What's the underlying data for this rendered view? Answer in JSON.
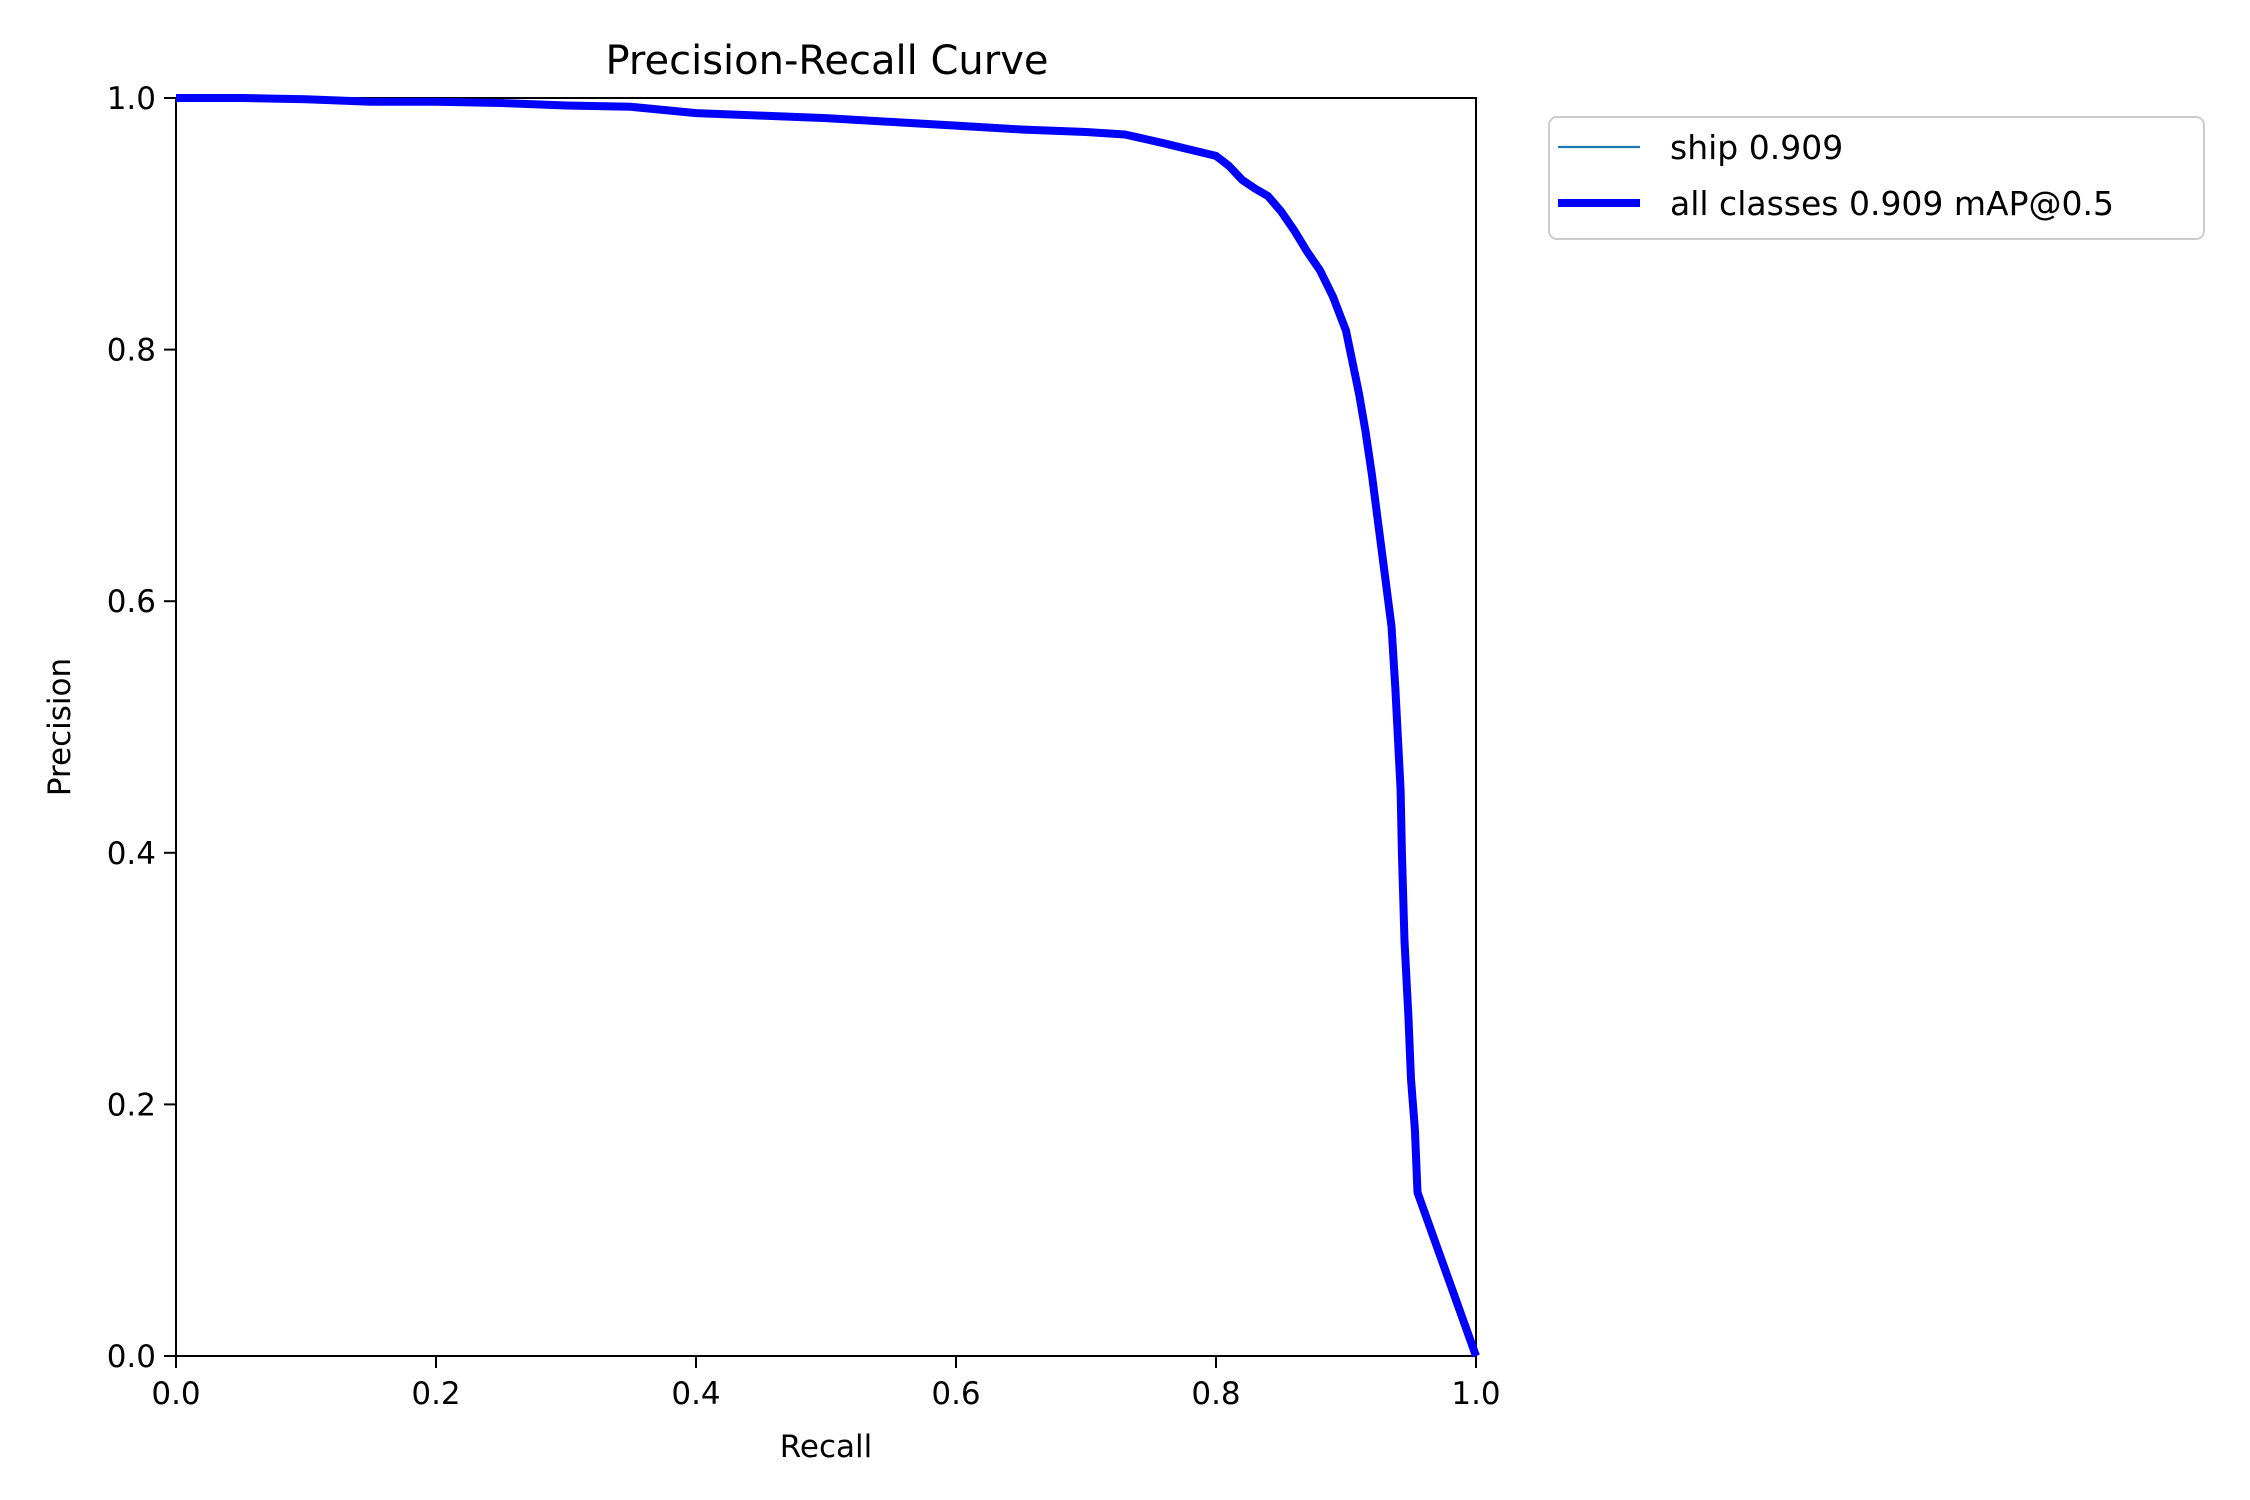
{
  "chart_data": {
    "type": "line",
    "title": "Precision-Recall Curve",
    "xlabel": "Recall",
    "ylabel": "Precision",
    "xlim": [
      0,
      1
    ],
    "ylim": [
      0,
      1
    ],
    "xticks": [
      "0.0",
      "0.2",
      "0.4",
      "0.6",
      "0.8",
      "1.0"
    ],
    "yticks": [
      "0.0",
      "0.2",
      "0.4",
      "0.6",
      "0.8",
      "1.0"
    ],
    "grid": false,
    "legend_position": "outside-top-right",
    "series": [
      {
        "name": "ship 0.909",
        "color": "#1f77b4",
        "line_width": "thin",
        "x": [
          0.0,
          0.05,
          0.1,
          0.15,
          0.2,
          0.25,
          0.3,
          0.35,
          0.4,
          0.45,
          0.5,
          0.55,
          0.6,
          0.65,
          0.7,
          0.73,
          0.76,
          0.78,
          0.8,
          0.81,
          0.82,
          0.83,
          0.84,
          0.85,
          0.86,
          0.87,
          0.88,
          0.89,
          0.9,
          0.905,
          0.91,
          0.915,
          0.92,
          0.925,
          0.93,
          0.935,
          0.938,
          0.94,
          0.942,
          0.943,
          0.945,
          0.948,
          0.95,
          0.953,
          0.955,
          1.0
        ],
        "y": [
          1.0,
          1.0,
          0.999,
          0.997,
          0.997,
          0.996,
          0.994,
          0.993,
          0.988,
          0.986,
          0.984,
          0.981,
          0.978,
          0.975,
          0.973,
          0.971,
          0.964,
          0.959,
          0.954,
          0.946,
          0.935,
          0.928,
          0.922,
          0.91,
          0.895,
          0.878,
          0.863,
          0.842,
          0.815,
          0.79,
          0.765,
          0.735,
          0.7,
          0.66,
          0.62,
          0.58,
          0.53,
          0.49,
          0.45,
          0.4,
          0.33,
          0.27,
          0.22,
          0.18,
          0.13,
          0.0
        ]
      },
      {
        "name": "all classes 0.909 mAP@0.5",
        "color": "#0000ff",
        "line_width": "thick",
        "x": [
          0.0,
          0.05,
          0.1,
          0.15,
          0.2,
          0.25,
          0.3,
          0.35,
          0.4,
          0.45,
          0.5,
          0.55,
          0.6,
          0.65,
          0.7,
          0.73,
          0.76,
          0.78,
          0.8,
          0.81,
          0.82,
          0.83,
          0.84,
          0.85,
          0.86,
          0.87,
          0.88,
          0.89,
          0.9,
          0.905,
          0.91,
          0.915,
          0.92,
          0.925,
          0.93,
          0.935,
          0.938,
          0.94,
          0.942,
          0.943,
          0.945,
          0.948,
          0.95,
          0.953,
          0.955,
          1.0
        ],
        "y": [
          1.0,
          1.0,
          0.999,
          0.997,
          0.997,
          0.996,
          0.994,
          0.993,
          0.988,
          0.986,
          0.984,
          0.981,
          0.978,
          0.975,
          0.973,
          0.971,
          0.964,
          0.959,
          0.954,
          0.946,
          0.935,
          0.928,
          0.922,
          0.91,
          0.895,
          0.878,
          0.863,
          0.842,
          0.815,
          0.79,
          0.765,
          0.735,
          0.7,
          0.66,
          0.62,
          0.58,
          0.53,
          0.49,
          0.45,
          0.4,
          0.33,
          0.27,
          0.22,
          0.18,
          0.13,
          0.0
        ]
      }
    ]
  }
}
